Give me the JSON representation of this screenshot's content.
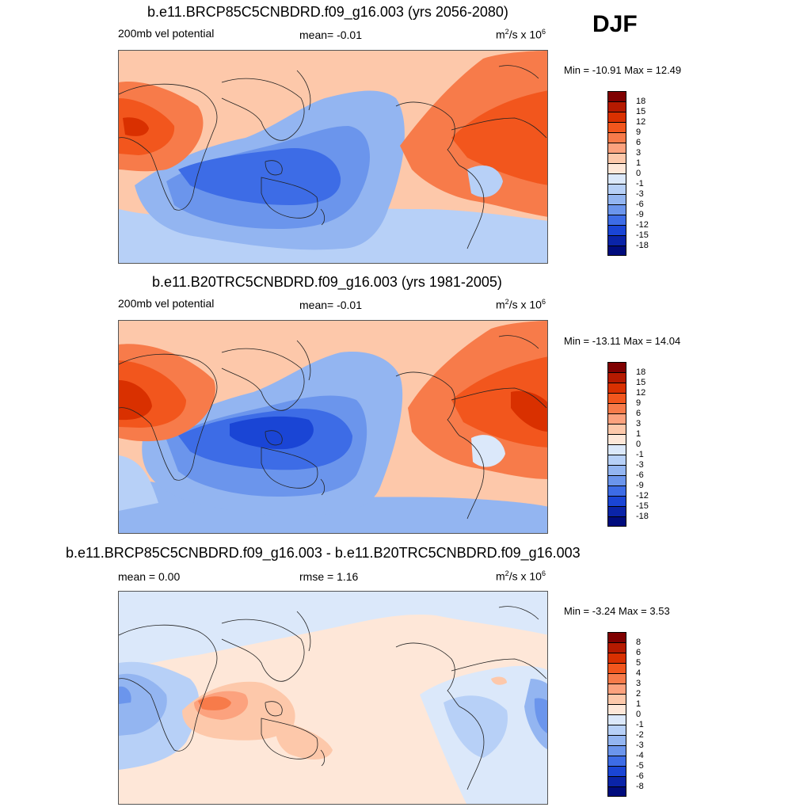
{
  "season": "DJF",
  "panels": [
    {
      "title": "b.e11.BRCP85C5CNBDRD.f09_g16.003 (yrs 2056-2080)",
      "left_label": "200mb vel potential",
      "center_label": "mean=  -0.01",
      "units_main": "m",
      "units_sup1": "2",
      "units_mid": "/s x 10",
      "units_sup2": "6",
      "minmax": "Min = -10.91 Max =  12.49",
      "levels": [
        "18",
        "15",
        "12",
        "9",
        "6",
        "3",
        "1",
        "0",
        "-1",
        "-3",
        "-6",
        "-9",
        "-12",
        "-15",
        "-18"
      ]
    },
    {
      "title": "b.e11.B20TRC5CNBDRD.f09_g16.003 (yrs 1981-2005)",
      "left_label": "200mb vel potential",
      "center_label": "mean=  -0.01",
      "units_main": "m",
      "units_sup1": "2",
      "units_mid": "/s x 10",
      "units_sup2": "6",
      "minmax": "Min = -13.11 Max =  14.04",
      "levels": [
        "18",
        "15",
        "12",
        "9",
        "6",
        "3",
        "1",
        "0",
        "-1",
        "-3",
        "-6",
        "-9",
        "-12",
        "-15",
        "-18"
      ]
    },
    {
      "title": "b.e11.BRCP85C5CNBDRD.f09_g16.003 - b.e11.B20TRC5CNBDRD.f09_g16.003",
      "left_label": "mean =   0.00",
      "center_label": "rmse =   1.16",
      "units_main": "m",
      "units_sup1": "2",
      "units_mid": "/s x 10",
      "units_sup2": "6",
      "minmax": "Min =  -3.24 Max =   3.53",
      "levels": [
        "8",
        "6",
        "5",
        "4",
        "3",
        "2",
        "1",
        "0",
        "-1",
        "-2",
        "-3",
        "-4",
        "-5",
        "-6",
        "-8"
      ]
    }
  ],
  "colors": {
    "scale": [
      "#7f0000",
      "#b51a00",
      "#d93000",
      "#f2561d",
      "#f77b4a",
      "#fca27e",
      "#fdc8aa",
      "#fee7d8",
      "#dbe8fa",
      "#b7d0f7",
      "#93b5f1",
      "#6b95ec",
      "#3d6ce6",
      "#1a45d5",
      "#0a24a8",
      "#000c7d"
    ]
  }
}
